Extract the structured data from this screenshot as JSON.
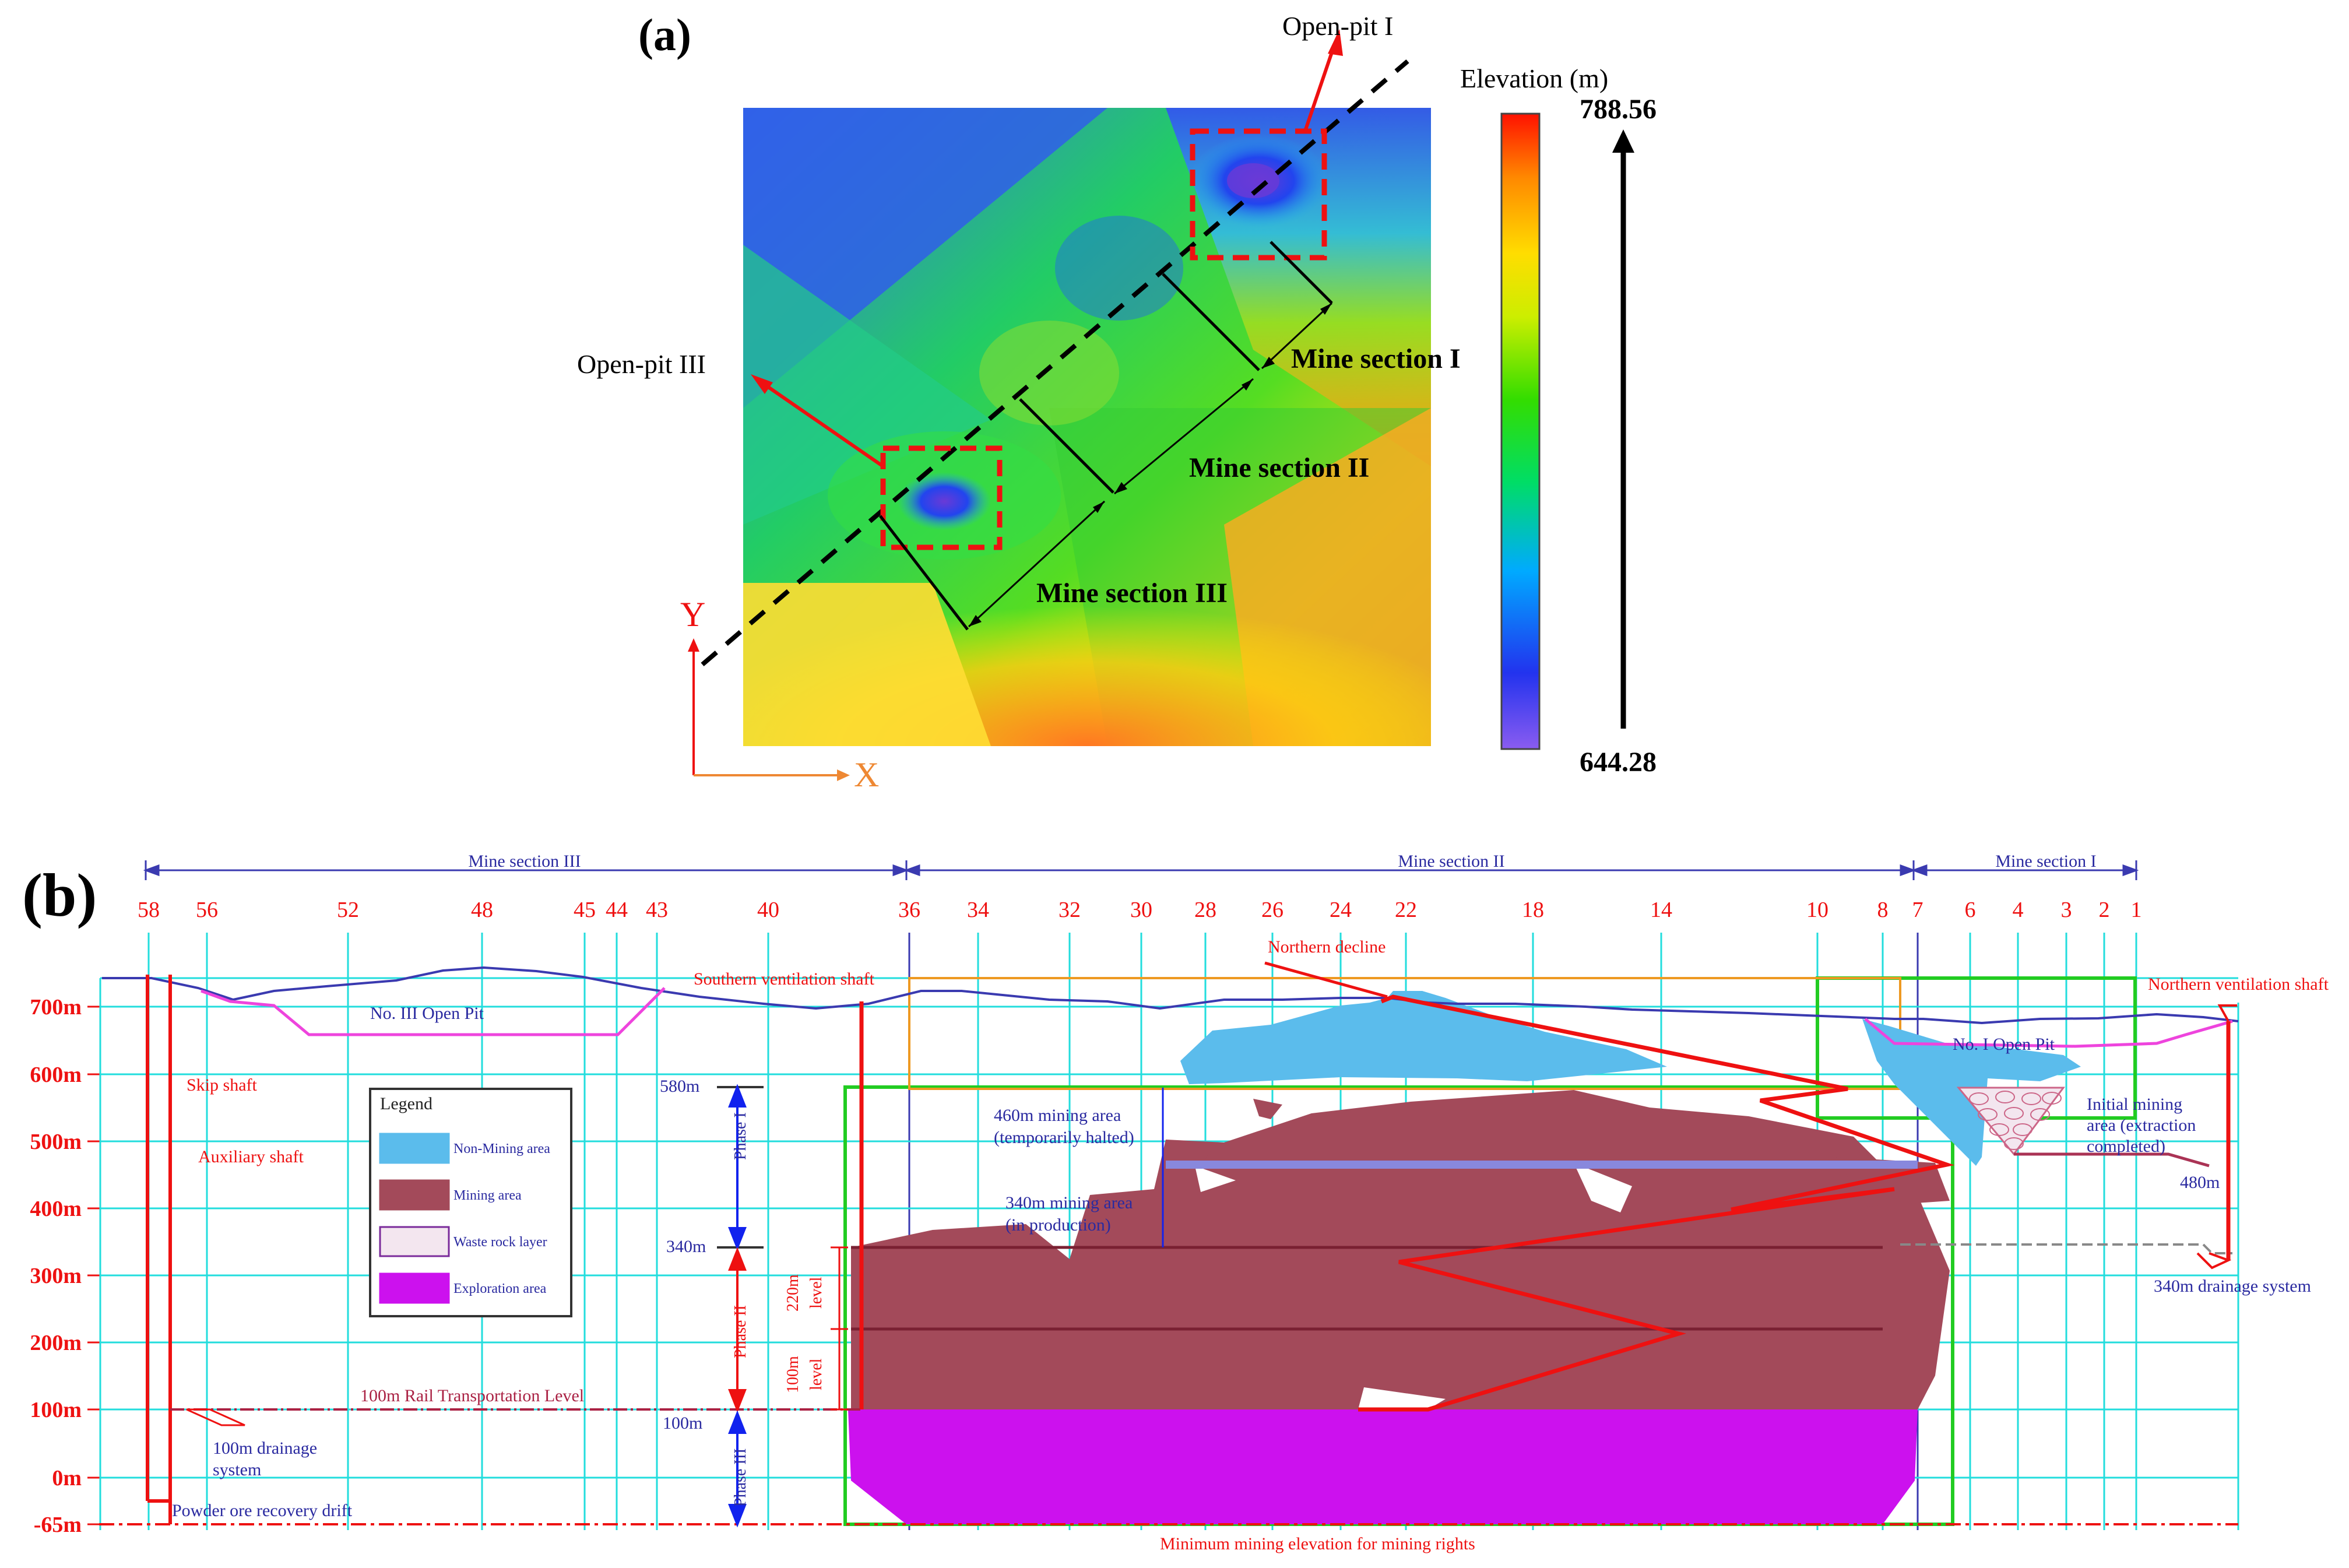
{
  "panel_a": {
    "label": "(a)",
    "open_pit_1": "Open-pit I",
    "open_pit_3": "Open-pit III",
    "mine_section_1": "Mine section I",
    "mine_section_2": "Mine section II",
    "mine_section_3": "Mine section III",
    "axis_y": "Y",
    "axis_x": "X",
    "colorbar": {
      "title": "Elevation (m)",
      "max": "788.56",
      "min": "644.28",
      "colors": [
        "#8a5cf0",
        "#2233ee",
        "#00aaff",
        "#00dd66",
        "#33dd00",
        "#ccee00",
        "#ffdd00",
        "#ff8800",
        "#ff1100"
      ]
    }
  },
  "panel_b": {
    "label": "(b)",
    "sections": {
      "s3": "Mine section III",
      "s2": "Mine section II",
      "s1": "Mine section I"
    },
    "line_numbers": [
      "58",
      "56",
      "52",
      "48",
      "45",
      "44",
      "43",
      "40",
      "36",
      "34",
      "32",
      "30",
      "28",
      "26",
      "24",
      "22",
      "18",
      "14",
      "10",
      "8",
      "7",
      "6",
      "4",
      "3",
      "2",
      "1"
    ],
    "elevations": [
      "700m",
      "600m",
      "500m",
      "400m",
      "300m",
      "200m",
      "100m",
      "0m",
      "-65m"
    ],
    "labels": {
      "no3_pit": "No. III Open Pit",
      "no1_pit": "No. I Open Pit",
      "southern_shaft": "Southern ventilation shaft",
      "northern_decline": "Northern decline",
      "northern_shaft": "Northern ventilation shaft",
      "skip_shaft": "Skip shaft",
      "aux_shaft": "Auxiliary shaft",
      "rail_level": "100m Rail Transportation Level",
      "drainage_100_a": "100m drainage",
      "drainage_100_b": "system",
      "powder_drift": "Powder ore recovery drift",
      "min_elev": "Minimum mining elevation for mining rights",
      "area_460_a": "460m mining area",
      "area_460_b": "(temporarily halted)",
      "area_340_a": "340m mining area",
      "area_340_b": "(in production)",
      "initial_a": "Initial mining",
      "initial_b": "area (extraction",
      "initial_c": "completed)",
      "m480": "480m",
      "drainage_340": "340m drainage system",
      "m580": "580m",
      "m340": "340m",
      "m100": "100m",
      "phase1": "Phase I",
      "phase2": "Phase II",
      "phase3": "Phase III",
      "lvl220": "220m",
      "lvl220b": "level",
      "lvl100": "100m",
      "lvl100b": "level"
    },
    "legend": {
      "title": "Legend",
      "items": [
        {
          "label": "Non-Mining area",
          "color": "#5bbcec"
        },
        {
          "label": "Mining area",
          "color": "#a34a5a"
        },
        {
          "label": "Waste rock layer",
          "color": "#f3e6ef"
        },
        {
          "label": "Exploration area",
          "color": "#cc11ee"
        }
      ]
    }
  }
}
